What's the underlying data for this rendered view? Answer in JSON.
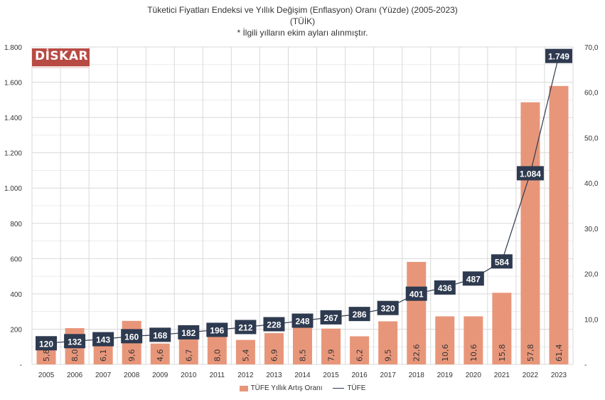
{
  "title_lines": [
    "Tüketici Fiyatları Endeksi ve Yıllık Değişim (Enflasyon) Oranı (Yüzde) (2005-2023)",
    "(TÜİK)",
    "* İlgili yılların ekim ayları alınmıştır."
  ],
  "logo_text": "DİSKAR",
  "colors": {
    "bar": "#e8967a",
    "line": "#2e3a4f",
    "label_bg": "#2e3a4f",
    "grid": "#d9d9d9"
  },
  "chart_data": {
    "type": "bar+line",
    "categories": [
      "2005",
      "2006",
      "2007",
      "2008",
      "2009",
      "2010",
      "2011",
      "2012",
      "2013",
      "2014",
      "2015",
      "2016",
      "2017",
      "2018",
      "2019",
      "2020",
      "2021",
      "2022",
      "2023"
    ],
    "series": [
      {
        "name": "TÜFE Yıllık Artış Oranı",
        "type": "bar",
        "axis": "right",
        "values": [
          5.8,
          8.0,
          6.1,
          9.6,
          4.6,
          6.7,
          8.0,
          5.4,
          6.9,
          8.5,
          7.9,
          6.2,
          9.5,
          22.6,
          10.6,
          10.6,
          15.8,
          57.8,
          61.4
        ],
        "labels": [
          "5,8",
          "8,0",
          "6,1",
          "9,6",
          "4,6",
          "6,7",
          "8,0",
          "5,4",
          "6,9",
          "8,5",
          "7,9",
          "6,2",
          "9,5",
          "22,6",
          "10,6",
          "10,6",
          "15,8",
          "57,8",
          "61,4"
        ]
      },
      {
        "name": "TÜFE",
        "type": "line",
        "axis": "left",
        "values": [
          120,
          132,
          143,
          160,
          168,
          182,
          196,
          212,
          228,
          248,
          267,
          286,
          320,
          401,
          436,
          487,
          584,
          1084,
          1749
        ],
        "labels": [
          "120",
          "132",
          "143",
          "160",
          "168",
          "182",
          "196",
          "212",
          "228",
          "248",
          "267",
          "286",
          "320",
          "401",
          "436",
          "487",
          "584",
          "1.084",
          "1.749"
        ]
      }
    ],
    "left_axis": {
      "range": [
        0,
        1800
      ],
      "ticks": [
        "-",
        "200",
        "400",
        "600",
        "800",
        "1.000",
        "1.200",
        "1.400",
        "1.600",
        "1.800"
      ]
    },
    "right_axis": {
      "range": [
        0,
        70
      ],
      "ticks": [
        "-",
        "10,0",
        "20,0",
        "30,0",
        "40,0",
        "50,0",
        "60,0",
        "70,0"
      ]
    },
    "legend": [
      "TÜFE Yıllık Artış Oranı",
      "TÜFE"
    ],
    "legend_position": "bottom",
    "grid": true
  }
}
